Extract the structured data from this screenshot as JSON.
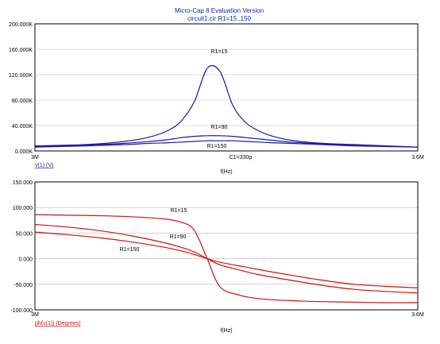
{
  "header": {
    "title": "Micro-Cap 8 Evaluation Version",
    "subtitle": "circuit1.cir R1=15..150"
  },
  "chart_data": [
    {
      "type": "line",
      "title": "Micro-Cap 8 Evaluation Version",
      "xlabel": "f(Hz)",
      "ylabel": "v(1) (V)",
      "annotation": "C1=330p",
      "x_tick_labels": [
        "3M",
        "3.6M"
      ],
      "xlim": [
        3000000,
        3600000
      ],
      "ylim": [
        0,
        200000
      ],
      "y_tick_labels": [
        "200.000K",
        "160.000K",
        "120.000K",
        "80.000K",
        "40.000K",
        "0.000K"
      ],
      "y_ticks": [
        200000,
        160000,
        120000,
        80000,
        40000,
        0
      ],
      "line_color": "#1a1aa8",
      "x": [
        3000000,
        3080000,
        3140000,
        3180000,
        3210000,
        3230000,
        3250000,
        3270000,
        3290000,
        3310000,
        3330000,
        3350000,
        3370000,
        3400000,
        3450000,
        3500000,
        3600000
      ],
      "series": [
        {
          "label": "R1=15",
          "values": [
            8000,
            10000,
            15000,
            22000,
            33000,
            48000,
            78000,
            130000,
            125000,
            72000,
            45000,
            32000,
            24000,
            17000,
            12000,
            10000,
            6000
          ]
        },
        {
          "label": "R1=90",
          "values": [
            7000,
            9000,
            12000,
            15000,
            18000,
            21000,
            23000,
            24000,
            24000,
            23000,
            21000,
            19000,
            17000,
            14000,
            11000,
            9000,
            6000
          ]
        },
        {
          "label": "R1=150",
          "values": [
            6000,
            8000,
            10000,
            12000,
            13000,
            14000,
            15000,
            16000,
            16000,
            16000,
            15000,
            14000,
            13000,
            12000,
            10000,
            8000,
            6000
          ]
        }
      ]
    },
    {
      "type": "line",
      "xlabel": "f(Hz)",
      "ylabel": "ph(v(1)) (Degrees)",
      "x_tick_labels": [
        "3M",
        "3.6M"
      ],
      "xlim": [
        3000000,
        3600000
      ],
      "ylim": [
        -100,
        150
      ],
      "y_tick_labels": [
        "150.000",
        "100.000",
        "50.000",
        "0.000",
        "-50.000",
        "-100.000"
      ],
      "y_ticks": [
        150,
        100,
        50,
        0,
        -50,
        -100
      ],
      "line_color": "#cc1111",
      "x": [
        3000000,
        3050000,
        3100000,
        3150000,
        3200000,
        3230000,
        3250000,
        3270000,
        3290000,
        3320000,
        3350000,
        3400000,
        3450000,
        3500000,
        3550000,
        3600000
      ],
      "series": [
        {
          "label": "R1=15",
          "values": [
            86,
            85,
            84,
            82,
            78,
            71,
            55,
            0,
            -55,
            -71,
            -78,
            -82,
            -84,
            -85,
            -86,
            -86
          ]
        },
        {
          "label": "R1=90",
          "values": [
            67,
            62,
            55,
            45,
            32,
            22,
            13,
            0,
            -12,
            -22,
            -31,
            -42,
            -52,
            -60,
            -64,
            -67
          ]
        },
        {
          "label": "R1=150",
          "values": [
            52,
            47,
            41,
            33,
            23,
            15,
            8,
            0,
            -7,
            -14,
            -21,
            -32,
            -42,
            -50,
            -54,
            -57
          ]
        }
      ]
    }
  ]
}
